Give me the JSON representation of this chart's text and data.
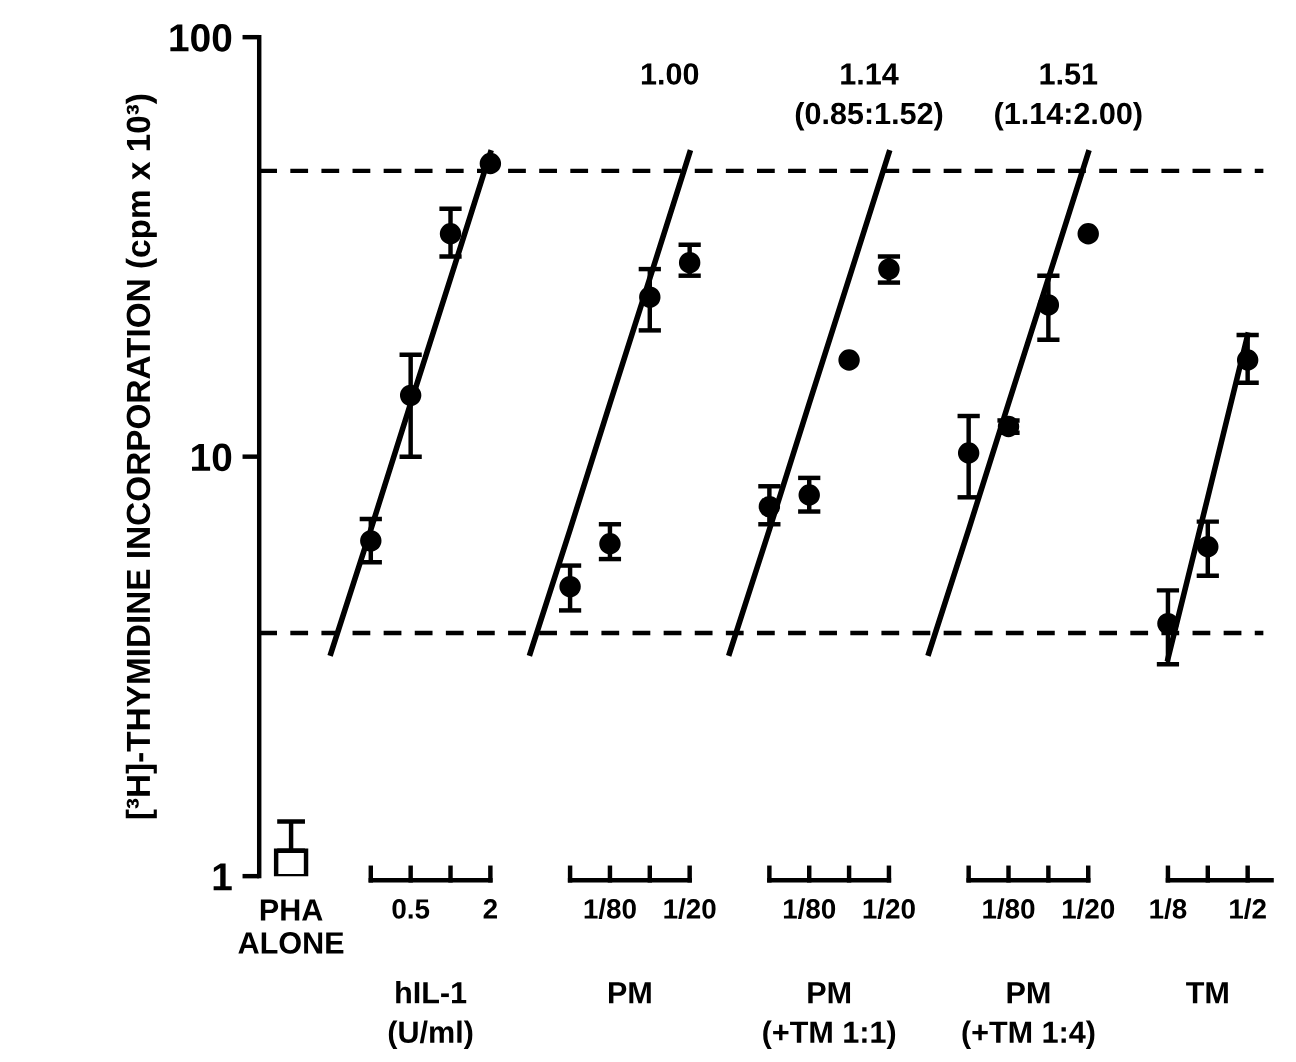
{
  "chart_data": {
    "type": "scatter",
    "ylabel": "[³H]-THYMIDINE INCORPORATION (cpm x 10³)",
    "categories": [
      "PHA\nALONE",
      null,
      null,
      "0.5",
      null,
      "2",
      null,
      null,
      "1/80",
      null,
      "1/20",
      null,
      null,
      "1/80",
      null,
      "1/20",
      null,
      null,
      "1/80",
      null,
      "1/20",
      null,
      "1/8",
      null,
      "1/2"
    ],
    "series": [
      {
        "type": "bar",
        "color": "#ffffff",
        "values": [
          1.15,
          null,
          null,
          null,
          null,
          null,
          null,
          null,
          null,
          null,
          null,
          null,
          null,
          null,
          null,
          null,
          null,
          null,
          null,
          null,
          null,
          null,
          null,
          null,
          null
        ],
        "errors": [
          [
            1.15,
            1.35
          ],
          null,
          null,
          null,
          null,
          null,
          null,
          null,
          null,
          null,
          null,
          null,
          null,
          null,
          null,
          null,
          null,
          null,
          null,
          null,
          null,
          null,
          null,
          null,
          null
        ]
      },
      {
        "color": "#000000",
        "marker": "circle",
        "values": [
          null,
          null,
          6.3,
          14,
          34,
          50,
          null,
          4.9,
          6.2,
          24,
          29,
          null,
          7.6,
          8.1,
          17,
          28,
          null,
          10.2,
          11.8,
          23,
          34,
          null,
          4.0,
          6.1,
          17
        ],
        "errors": [
          null,
          null,
          [
            5.6,
            7.1
          ],
          [
            10,
            17.5
          ],
          [
            30,
            39
          ],
          null,
          null,
          [
            4.3,
            5.5
          ],
          [
            5.7,
            6.9
          ],
          [
            20,
            28
          ],
          [
            27,
            32
          ],
          null,
          [
            6.9,
            8.5
          ],
          [
            7.4,
            8.9
          ],
          null,
          [
            26,
            30
          ],
          null,
          [
            8,
            12.5
          ],
          [
            11.4,
            12.2
          ],
          [
            19,
            27
          ],
          null,
          null,
          [
            3.2,
            4.8
          ],
          [
            5.2,
            7
          ],
          [
            15,
            19.5
          ]
        ]
      },
      {
        "type": "line",
        "color": "#000000",
        "values": [
          null,
          3.4,
          6.7,
          13.4,
          26.6,
          53,
          null,
          null,
          null,
          null,
          null,
          null,
          null,
          null,
          null,
          null,
          null,
          null,
          null,
          null,
          null,
          null,
          null,
          null,
          null
        ]
      },
      {
        "type": "line",
        "color": "#000000",
        "values": [
          null,
          null,
          null,
          null,
          null,
          null,
          3.4,
          6.7,
          13.4,
          26.6,
          53,
          null,
          null,
          null,
          null,
          null,
          null,
          null,
          null,
          null,
          null,
          null,
          null,
          null,
          null
        ]
      },
      {
        "type": "line",
        "color": "#000000",
        "values": [
          null,
          null,
          null,
          null,
          null,
          null,
          null,
          null,
          null,
          null,
          null,
          3.4,
          6.7,
          13.4,
          26.6,
          53,
          null,
          null,
          null,
          null,
          null,
          null,
          null,
          null,
          null
        ]
      },
      {
        "type": "line",
        "color": "#000000",
        "values": [
          null,
          null,
          null,
          null,
          null,
          null,
          null,
          null,
          null,
          null,
          null,
          null,
          null,
          null,
          null,
          null,
          3.4,
          6.7,
          13.4,
          26.6,
          53,
          null,
          null,
          null,
          null
        ]
      },
      {
        "type": "line",
        "color": "#000000",
        "values": [
          null,
          null,
          null,
          null,
          null,
          null,
          null,
          null,
          null,
          null,
          null,
          null,
          null,
          null,
          null,
          null,
          null,
          null,
          null,
          null,
          null,
          null,
          3.3,
          8.0,
          19.5
        ]
      }
    ],
    "log": "y",
    "ylim": [
      1,
      100
    ],
    "yticks": [
      1,
      10,
      100
    ],
    "ref_lines": [
      {
        "axis": "y",
        "value": 48,
        "line_style": "dashed"
      },
      {
        "axis": "y",
        "value": 3.8,
        "line_style": "dashed"
      }
    ],
    "annotations": [
      "hIL-1\n(U/ml)",
      "PM",
      "PM\n(+TM 1:1)",
      "PM\n(+TM 1:4)",
      "TM",
      "1.00",
      "1.14\n(0.85:1.52)",
      "1.51\n(1.14:2.00)"
    ],
    "grid": false
  }
}
